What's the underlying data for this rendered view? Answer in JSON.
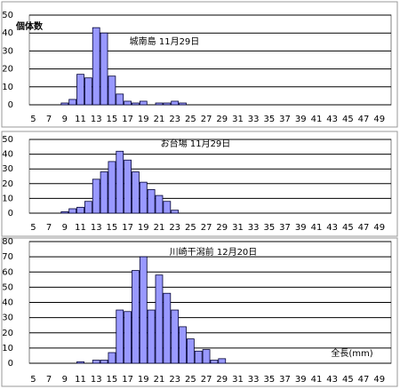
{
  "chart_data": [
    {
      "type": "bar",
      "title": "城南島 11月29日",
      "ylabel": "個体数",
      "color": "#9999ff",
      "categories": [
        "5",
        null,
        "7",
        null,
        "9",
        null,
        "11",
        null,
        "13",
        null,
        "15",
        null,
        "17",
        null,
        "19",
        null,
        "21",
        null,
        "23",
        null,
        "25",
        null,
        "27",
        null,
        "29",
        null,
        "31",
        null,
        "33",
        null,
        "35",
        null,
        "37",
        null,
        "39",
        null,
        "41",
        null,
        "43",
        null,
        "45",
        null,
        "47",
        null,
        "49",
        null
      ],
      "values": [
        0,
        0,
        0,
        0,
        1,
        3,
        17,
        15,
        43,
        40,
        16,
        6,
        2,
        1,
        2,
        0,
        1,
        1,
        2,
        1,
        0,
        0,
        0,
        0,
        0,
        0,
        0,
        0,
        0,
        0,
        0,
        0,
        0,
        0,
        0,
        0,
        0,
        0,
        0,
        0,
        0,
        0,
        0,
        0,
        0,
        0
      ],
      "ylim": [
        0,
        50
      ],
      "yticks": [
        0,
        10,
        20,
        30,
        40,
        50
      ],
      "grid": true
    },
    {
      "type": "bar",
      "title": "お台場 11月29日",
      "color": "#9999ff",
      "categories": [
        "5",
        null,
        "7",
        null,
        "9",
        null,
        "11",
        null,
        "13",
        null,
        "15",
        null,
        "17",
        null,
        "19",
        null,
        "21",
        null,
        "23",
        null,
        "25",
        null,
        "27",
        null,
        "29",
        null,
        "31",
        null,
        "33",
        null,
        "35",
        null,
        "37",
        null,
        "39",
        null,
        "41",
        null,
        "43",
        null,
        "45",
        null,
        "47",
        null,
        "49",
        null
      ],
      "values": [
        0,
        0,
        0,
        0,
        1,
        3,
        4,
        8,
        23,
        28,
        35,
        42,
        36,
        28,
        21,
        16,
        12,
        8,
        2,
        0,
        0,
        0,
        0,
        0,
        0,
        0,
        0,
        0,
        0,
        0,
        0,
        0,
        0,
        0,
        0,
        0,
        0,
        0,
        0,
        0,
        0,
        0,
        0,
        0,
        0,
        0
      ],
      "ylim": [
        0,
        50
      ],
      "yticks": [
        0,
        10,
        20,
        30,
        40,
        50
      ],
      "grid": true
    },
    {
      "type": "bar",
      "title": "川崎干潟前 12月20日",
      "xlabel": "全長(mm)",
      "color": "#9999ff",
      "categories": [
        "5",
        null,
        "7",
        null,
        "9",
        null,
        "11",
        null,
        "13",
        null,
        "15",
        null,
        "17",
        null,
        "19",
        null,
        "21",
        null,
        "23",
        null,
        "25",
        null,
        "27",
        null,
        "29",
        null,
        "31",
        null,
        "33",
        null,
        "35",
        null,
        "37",
        null,
        "39",
        null,
        "41",
        null,
        "43",
        null,
        "45",
        null,
        "47",
        null,
        "49",
        null
      ],
      "values": [
        0,
        0,
        0,
        0,
        0,
        0,
        1,
        0,
        2,
        2,
        7,
        35,
        34,
        61,
        70,
        35,
        58,
        46,
        35,
        24,
        16,
        8,
        9,
        2,
        3,
        0,
        0,
        0,
        0,
        0,
        0,
        0,
        0,
        0,
        0,
        0,
        0,
        0,
        0,
        0,
        0,
        0,
        0,
        0,
        0,
        0
      ],
      "ylim": [
        0,
        80
      ],
      "yticks": [
        0,
        10,
        20,
        30,
        40,
        50,
        60,
        70,
        80
      ],
      "grid": true
    }
  ]
}
